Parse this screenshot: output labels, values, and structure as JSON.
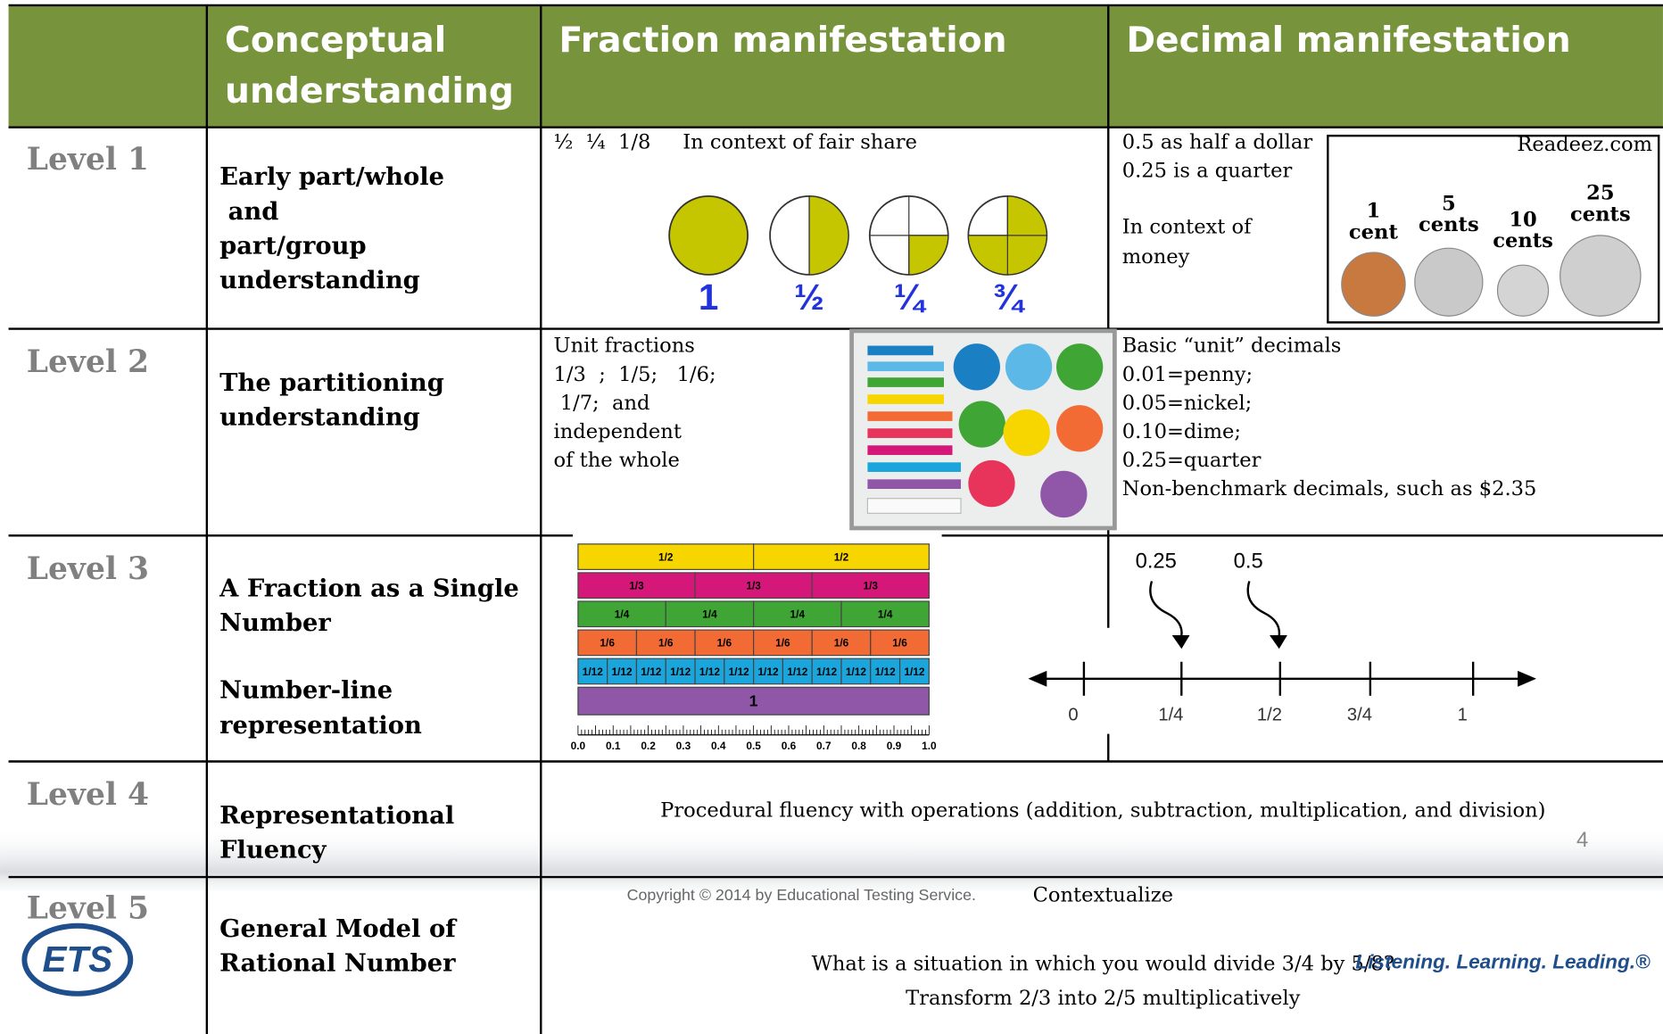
{
  "table": {
    "columns": [
      [
        "Conceptual",
        "understanding"
      ],
      [
        "Fraction manifestation"
      ],
      [
        "Decimal manifestation"
      ]
    ],
    "rows": [
      {
        "level": "Level 1",
        "concept": [
          "Early part/whole",
          " and",
          "part/group",
          "understanding"
        ],
        "fraction": [
          "½  ¼  1/8     In context of fair share"
        ],
        "fraction_figure": [
          "1",
          "½",
          "¼",
          "¾"
        ],
        "decimal": [
          "0.5 as half a dollar",
          "0.25 is a quarter"
        ],
        "decimal_note": [
          "In context of",
          "money"
        ],
        "coins_source": "Readeez.com",
        "coins": [
          {
            "amount": "1",
            "unit": "cent"
          },
          {
            "amount": "5",
            "unit": "cents"
          },
          {
            "amount": "10",
            "unit": "cents"
          },
          {
            "amount": "25",
            "unit": "cents"
          }
        ]
      },
      {
        "level": "Level 2",
        "concept": [
          "The partitioning",
          "understanding"
        ],
        "fraction": [
          "Unit fractions",
          "1/3  ;  1/5;   1/6;",
          " 1/7;  and",
          "independent",
          "of the whole"
        ],
        "decimal": [
          "Basic “unit” decimals",
          "0.01=penny;",
          "0.05=nickel;",
          "0.10=dime;",
          "0.25=quarter",
          "Non-benchmark decimals, such as $2.35"
        ]
      },
      {
        "level": "Level 3",
        "concept": [
          "A Fraction as a Single",
          "Number"
        ],
        "concept_note": [
          "Number-line",
          "representation"
        ],
        "strips": [
          {
            "color": "#f7d600",
            "pieces": [
              "1/2",
              "1/2"
            ]
          },
          {
            "color": "#d6177a",
            "pieces": [
              "1/3",
              "1/3",
              "1/3"
            ]
          },
          {
            "color": "#3fa535",
            "pieces": [
              "1/4",
              "1/4",
              "1/4",
              "1/4"
            ]
          },
          {
            "color": "#f26b35",
            "pieces": [
              "1/6",
              "1/6",
              "1/6",
              "1/6",
              "1/6",
              "1/6"
            ]
          },
          {
            "color": "#1aa6dc",
            "pieces": [
              "1/12",
              "1/12",
              "1/12",
              "1/12",
              "1/12",
              "1/12",
              "1/12",
              "1/12",
              "1/12",
              "1/12",
              "1/12",
              "1/12"
            ]
          },
          {
            "color": "#9056a8",
            "pieces": [
              "1"
            ]
          }
        ],
        "ruler": [
          "0.0",
          "0.1",
          "0.2",
          "0.3",
          "0.4",
          "0.5",
          "0.6",
          "0.7",
          "0.8",
          "0.9",
          "1.0"
        ],
        "pointers": [
          "0.25",
          "0.5"
        ],
        "number_line": [
          "0",
          "1/4",
          "1/2",
          "3/4",
          "1"
        ]
      },
      {
        "level": "Level 4",
        "concept": [
          "Representational",
          "Fluency"
        ],
        "merged": [
          "Procedural fluency with operations (addition, subtraction, multiplication, and division)"
        ]
      },
      {
        "level": "Level 5",
        "concept": [
          "General Model of",
          "Rational Number"
        ],
        "merged": [
          "Contextualize",
          "What is a situation in which you would divide 3/4 by 5/8?",
          "Transform 2/3 into 2/5 multiplicatively"
        ]
      }
    ]
  },
  "footer": {
    "page": "4",
    "copyright": "Copyright © 2014 by Educational Testing Service.",
    "logo": "ETS",
    "tagline": "Listening. Learning. Leading.®"
  }
}
